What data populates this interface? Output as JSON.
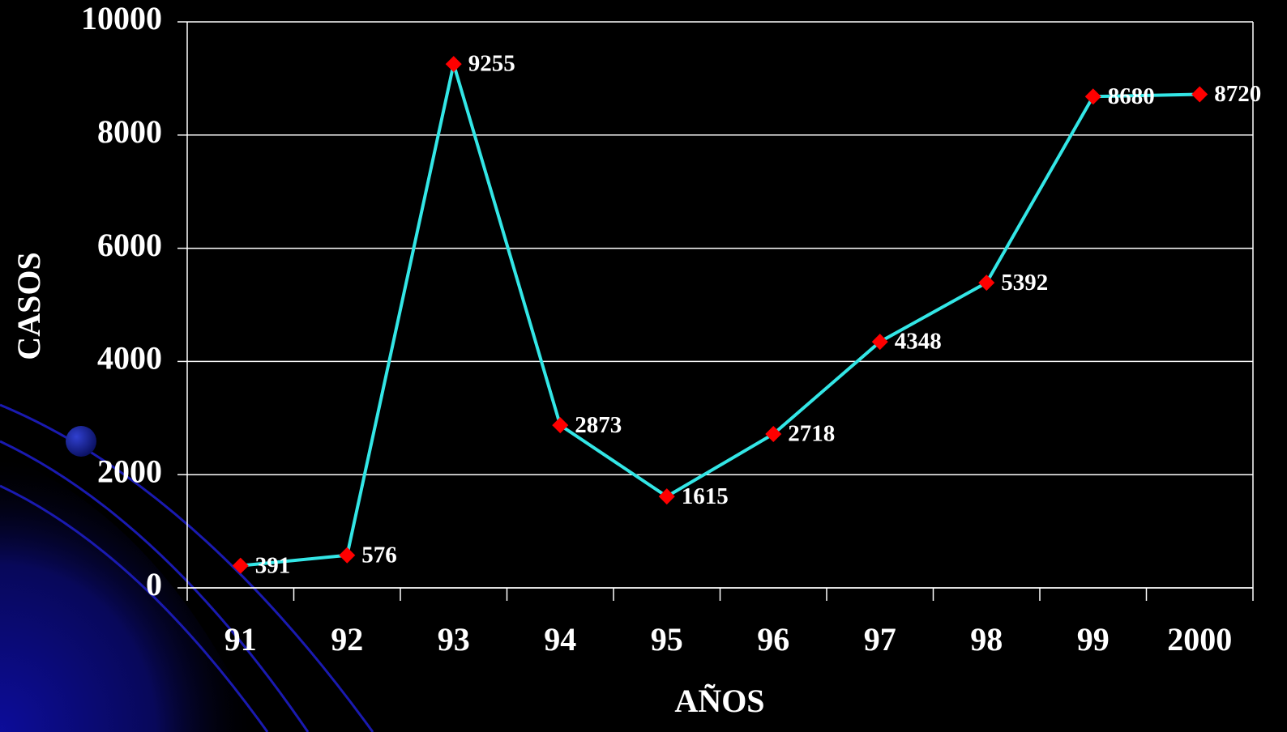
{
  "chart_data": {
    "type": "line",
    "categories": [
      "91",
      "92",
      "93",
      "94",
      "95",
      "96",
      "97",
      "98",
      "99",
      "2000"
    ],
    "values": [
      391,
      576,
      9255,
      2873,
      1615,
      2718,
      4348,
      5392,
      8680,
      8720
    ],
    "color": "#33e6e6",
    "marker_color": "#ff0000",
    "ylim": [
      0,
      10000
    ],
    "yticks": [
      0,
      2000,
      4000,
      6000,
      8000,
      10000
    ],
    "grid": true,
    "ylabel": "CASOS",
    "xlabel": "AÑOS"
  }
}
